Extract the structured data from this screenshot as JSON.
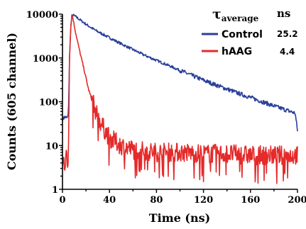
{
  "chart_data": {
    "type": "line",
    "xlabel": "Time (ns)",
    "ylabel": "Counts (605 channel)",
    "xlim": [
      0,
      200
    ],
    "ylim": [
      1,
      10000
    ],
    "y_scale": "log",
    "x_ticks": [
      0,
      40,
      80,
      120,
      160,
      200
    ],
    "y_ticks": [
      1,
      10,
      100,
      1000,
      10000
    ],
    "x_tick_labels": [
      "0",
      "40",
      "80",
      "120",
      "160",
      "200"
    ],
    "y_tick_labels": [
      "1",
      "10",
      "100",
      "1000",
      "10000"
    ],
    "legend": {
      "placement": "top-right",
      "header_symbol": "τ",
      "header_subscript": "average",
      "header_unit": "ns"
    },
    "series": [
      {
        "name": "Control",
        "color": "#2a3f9a",
        "tau_average": "25.2",
        "x": [
          0,
          2,
          4,
          5,
          5.5,
          6,
          7,
          8,
          9,
          10,
          12,
          15,
          20,
          25,
          30,
          40,
          50,
          60,
          70,
          80,
          90,
          100,
          110,
          120,
          130,
          140,
          150,
          160,
          170,
          180,
          190,
          198,
          200
        ],
        "y": [
          40,
          45,
          42,
          48,
          200,
          1000,
          5000,
          9000,
          9600,
          9200,
          8500,
          7400,
          5900,
          4800,
          4000,
          2900,
          2100,
          1550,
          1150,
          880,
          680,
          520,
          400,
          310,
          245,
          195,
          155,
          125,
          100,
          80,
          65,
          55,
          22
        ]
      },
      {
        "name": "hAAG",
        "color": "#e42a2a",
        "tau_average": "4.4",
        "x": [
          0,
          1,
          2,
          3,
          4,
          5,
          5.5,
          6,
          7,
          8,
          9,
          10,
          12,
          14,
          16,
          18,
          20,
          22,
          25,
          28,
          30,
          35,
          40,
          50,
          60,
          80,
          100,
          120,
          140,
          160,
          180,
          200
        ],
        "y": [
          3,
          5,
          4,
          8,
          3,
          5,
          60,
          1000,
          5000,
          9500,
          8000,
          5500,
          3000,
          1700,
          1000,
          600,
          350,
          200,
          110,
          65,
          45,
          25,
          15,
          10,
          8,
          7,
          7,
          6.5,
          6.5,
          6,
          6,
          6
        ]
      }
    ]
  }
}
